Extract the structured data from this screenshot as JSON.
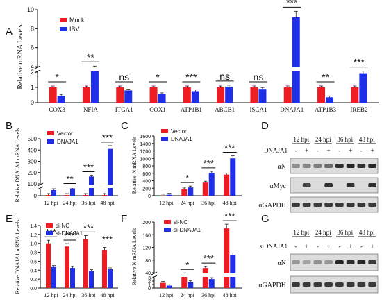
{
  "colors": {
    "red": "#ee1c23",
    "blue": "#1f2fe8",
    "axis": "#111111",
    "error": "#222222"
  },
  "panels": [
    {
      "label": "A"
    },
    {
      "label": "B"
    },
    {
      "label": "C"
    },
    {
      "label": "D"
    },
    {
      "label": "E"
    },
    {
      "label": "F"
    },
    {
      "label": "G"
    }
  ],
  "chart_data": [
    {
      "id": "A",
      "type": "bar",
      "ylabel": "Relative mRNA Levels",
      "legend": [
        "Mock",
        "IBV"
      ],
      "legend_placement": "top-left",
      "categories": [
        "COX3",
        "NFIA",
        "ITGA1",
        "COX1",
        "ATP1B1",
        "ABCB1",
        "ISCA1",
        "DNAJA1",
        "ATP1B3",
        "IREB2"
      ],
      "series": [
        {
          "name": "Mock",
          "values": [
            1.0,
            1.0,
            1.0,
            1.0,
            1.0,
            1.0,
            1.0,
            1.0,
            1.0,
            1.0
          ]
        },
        {
          "name": "IBV",
          "values": [
            0.45,
            3.8,
            0.8,
            0.55,
            0.75,
            1.05,
            0.9,
            9.2,
            0.35,
            3.3
          ]
        }
      ],
      "significance": [
        "*",
        "**",
        "ns",
        "*",
        "***",
        "ns",
        "ns",
        "***",
        "**",
        "***"
      ],
      "lower_ticks": [
        "0",
        "1",
        "2"
      ],
      "upper_ticks": [
        "4",
        "6",
        "8",
        "10"
      ],
      "ylim": [
        0,
        10
      ],
      "axis_break": true
    },
    {
      "id": "B",
      "type": "bar",
      "ylabel": "Relative DNAJA1 mRNA Levels",
      "legend": [
        "Vector",
        "DNAJA1"
      ],
      "legend_placement": "top-left",
      "categories": [
        "12 hpi",
        "24 hpi",
        "36 hpi",
        "48 hpi"
      ],
      "series": [
        {
          "name": "Vector",
          "values": [
            1.0,
            1.0,
            1.0,
            1.0
          ]
        },
        {
          "name": "DNAJA1",
          "values": [
            8,
            60,
            165,
            410
          ]
        }
      ],
      "significance": [
        "",
        "**",
        "***",
        "***"
      ],
      "lower_ticks": [
        "0"
      ],
      "upper_ticks": [
        "100",
        "200",
        "300",
        "400",
        "500"
      ],
      "ylim": [
        0,
        500
      ],
      "axis_break": true
    },
    {
      "id": "C",
      "type": "bar",
      "ylabel": "Relative N mRNA Levels",
      "legend": [
        "Vector",
        "DNAJA1"
      ],
      "legend_placement": "top-left",
      "categories": [
        "12 hpi",
        "24 hpi",
        "36 hpi",
        "48 hpi"
      ],
      "series": [
        {
          "name": "Vector",
          "values": [
            3,
            170,
            350,
            565
          ]
        },
        {
          "name": "DNAJA1",
          "values": [
            25,
            220,
            610,
            1000
          ]
        }
      ],
      "significance": [
        "",
        "*",
        "***",
        "***"
      ],
      "lower_ticks": [
        "0",
        "200",
        "400",
        "600",
        "800",
        "1000",
        "1200",
        "1400",
        "1600"
      ],
      "upper_ticks": [],
      "ylim": [
        0,
        1600
      ],
      "axis_break": false
    },
    {
      "id": "E",
      "type": "bar",
      "ylabel": "Relative DNAJA1 mRNA Levels",
      "legend": [
        "si-NC",
        "si-DNAJA1"
      ],
      "legend_placement": "top-left",
      "categories": [
        "12 hpi",
        "24 hpi",
        "36 hpi",
        "48 hpi"
      ],
      "series": [
        {
          "name": "si-NC",
          "values": [
            1.0,
            0.93,
            1.1,
            0.85
          ]
        },
        {
          "name": "si-DNAJA1",
          "values": [
            0.47,
            0.45,
            0.38,
            0.42
          ]
        }
      ],
      "significance": [
        "***",
        "***",
        "***",
        "***"
      ],
      "lower_ticks": [
        "0.0",
        "0.2",
        "0.4",
        "0.6",
        "0.8",
        "1.0",
        "1.2",
        "1.4"
      ],
      "upper_ticks": [],
      "ylim": [
        0,
        1.4
      ],
      "axis_break": false
    },
    {
      "id": "F",
      "type": "bar",
      "ylabel": "Relative N mRNA Levels",
      "legend": [
        "si-NC",
        "si-DNAJA1"
      ],
      "legend_placement": "top-left",
      "categories": [
        "12 hpi",
        "24 hpi",
        "36 hpi",
        "48 hpi"
      ],
      "series": [
        {
          "name": "si-NC",
          "values": [
            1.5,
            35,
            55,
            180
          ]
        },
        {
          "name": "si-DNAJA1",
          "values": [
            0.7,
            10,
            20,
            95
          ]
        }
      ],
      "significance": [
        "",
        "*",
        "***",
        "***"
      ],
      "lower_ticks": [
        "0",
        "1",
        "2",
        "3"
      ],
      "upper_ticks": [
        "40",
        "80",
        "120",
        "160",
        "200"
      ],
      "ylim": [
        0,
        200
      ],
      "axis_break": true
    }
  ],
  "blot_D": {
    "timepoints": [
      "12 hpi",
      "24 hpi",
      "36 hpi",
      "48 hpi"
    ],
    "treatment_label": "DNAJA1",
    "signs": [
      "-",
      "+",
      "-",
      "+",
      "-",
      "+",
      "-",
      "+"
    ],
    "rows": [
      {
        "label": "αN",
        "intensity": [
          0.35,
          0.4,
          0.45,
          0.55,
          0.85,
          0.9,
          0.85,
          0.9
        ]
      },
      {
        "label": "αMyc",
        "intensity": [
          0.0,
          0.75,
          0.0,
          0.85,
          0.0,
          0.85,
          0.0,
          0.85
        ]
      },
      {
        "label": "αGAPDH",
        "intensity": [
          0.8,
          0.8,
          0.8,
          0.8,
          0.8,
          0.8,
          0.8,
          0.8
        ]
      }
    ]
  },
  "blot_G": {
    "timepoints": [
      "12 hpi",
      "24 hpi",
      "36 hpi",
      "48 hpi"
    ],
    "treatment_label": "siDNAJA1",
    "signs": [
      "-",
      "+",
      "-",
      "+",
      "-",
      "+",
      "-",
      "+"
    ],
    "rows": [
      {
        "label": "αN",
        "intensity": [
          0.3,
          0.25,
          0.35,
          0.3,
          0.9,
          0.85,
          0.9,
          0.8
        ]
      },
      {
        "label": "αGAPDH",
        "intensity": [
          0.8,
          0.8,
          0.8,
          0.8,
          0.8,
          0.8,
          0.8,
          0.8
        ]
      }
    ]
  }
}
